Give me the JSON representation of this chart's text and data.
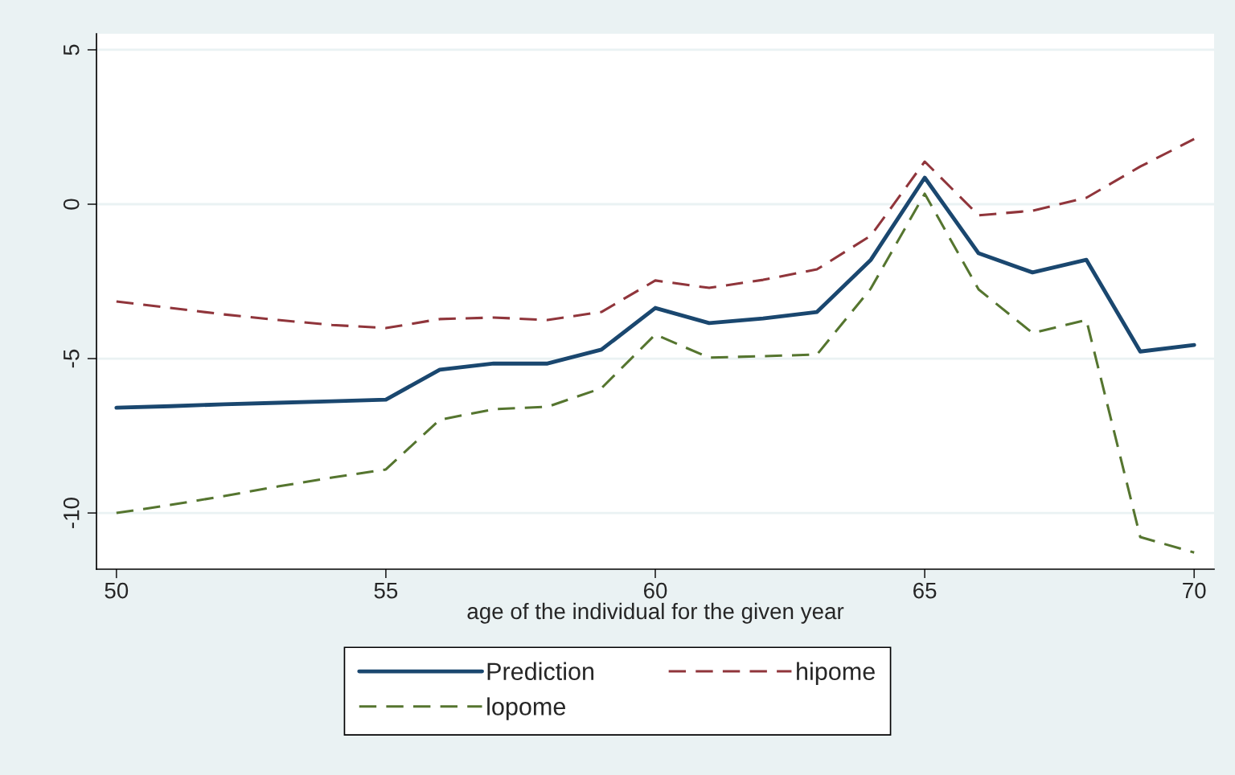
{
  "chart_data": {
    "type": "line",
    "xlabel": "age of the individual for the given year",
    "x": [
      50,
      51,
      52,
      53,
      54,
      55,
      56,
      57,
      58,
      59,
      60,
      61,
      62,
      63,
      64,
      65,
      66,
      67,
      68,
      69,
      70
    ],
    "series": [
      {
        "name": "Prediction",
        "color": "#1a476f",
        "line_style": "solid",
        "values": [
          -6.59,
          -6.54,
          -6.48,
          -6.43,
          -6.38,
          -6.33,
          -5.36,
          -5.16,
          -5.16,
          -4.71,
          -3.36,
          -3.85,
          -3.7,
          -3.49,
          -1.8,
          0.86,
          -1.59,
          -2.21,
          -1.8,
          -4.77,
          -4.56
        ]
      },
      {
        "name": "hipome",
        "color": "#90353b",
        "line_style": "dashed",
        "values": [
          -3.15,
          -3.36,
          -3.57,
          -3.75,
          -3.91,
          -4.01,
          -3.72,
          -3.67,
          -3.75,
          -3.49,
          -2.47,
          -2.71,
          -2.45,
          -2.11,
          -1.02,
          1.38,
          -0.36,
          -0.21,
          0.21,
          1.22,
          2.11
        ]
      },
      {
        "name": "lopome",
        "color": "#55752f",
        "line_style": "dashed",
        "values": [
          -10.0,
          -9.74,
          -9.45,
          -9.14,
          -8.85,
          -8.59,
          -6.98,
          -6.64,
          -6.56,
          -5.96,
          -4.22,
          -4.97,
          -4.92,
          -4.87,
          -2.73,
          0.34,
          -2.76,
          -4.17,
          -3.75,
          -10.78,
          -11.28
        ]
      }
    ],
    "xlim": [
      49.63,
      70.37
    ],
    "ylim": [
      -11.82,
      5.52
    ],
    "xticks": [
      50,
      55,
      60,
      65,
      70
    ],
    "yticks": [
      -10,
      -5,
      0,
      5
    ],
    "grid": "y",
    "legend": "bottom",
    "marker": "none"
  }
}
